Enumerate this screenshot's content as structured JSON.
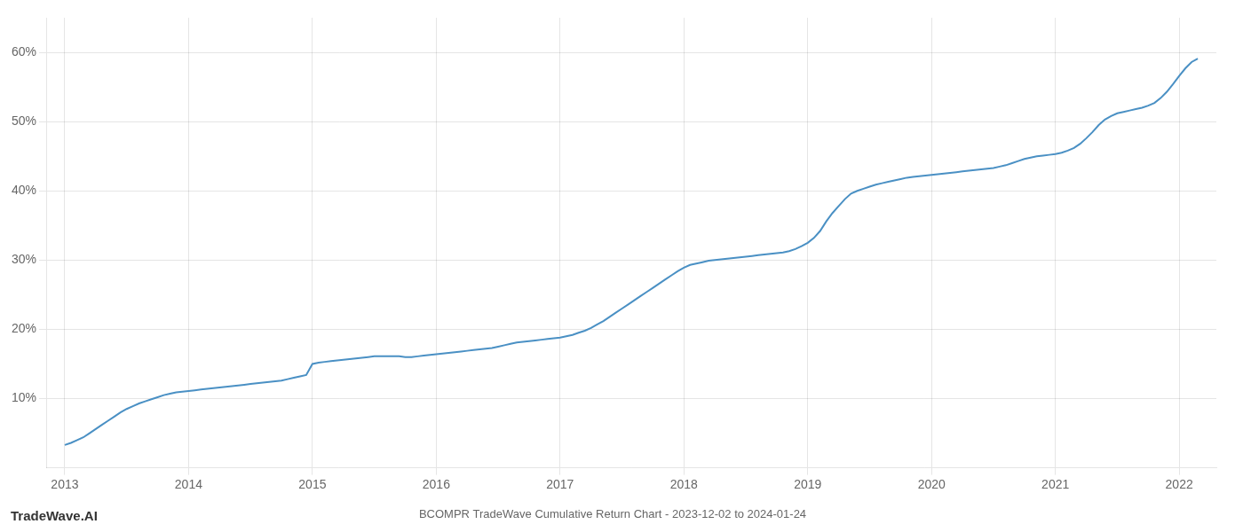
{
  "chart_data": {
    "type": "line",
    "title": "BCOMPR TradeWave Cumulative Return Chart - 2023-12-02 to 2024-01-24",
    "annotations": [
      "TradeWave.AI"
    ],
    "color": "#4a90c4",
    "grid": true,
    "xlim": [
      2012.85,
      2022.3
    ],
    "xticks": [
      2013,
      2014,
      2015,
      2016,
      2017,
      2018,
      2019,
      2020,
      2021,
      2022
    ],
    "ylim": [
      0.0,
      0.65
    ],
    "yticks": [
      {
        "value": 0.1,
        "label": "10%"
      },
      {
        "value": 0.2,
        "label": "20%"
      },
      {
        "value": 0.3,
        "label": "30%"
      },
      {
        "value": 0.4,
        "label": "40%"
      },
      {
        "value": 0.5,
        "label": "50%"
      },
      {
        "value": 0.6,
        "label": "60%"
      }
    ],
    "x": [
      2013.0,
      2013.05,
      2013.1,
      2013.15,
      2013.2,
      2013.25,
      2013.3,
      2013.35,
      2013.4,
      2013.45,
      2013.5,
      2013.55,
      2013.6,
      2013.65,
      2013.7,
      2013.75,
      2013.8,
      2013.85,
      2013.9,
      2013.95,
      2014.0,
      2014.05,
      2014.1,
      2014.15,
      2014.2,
      2014.25,
      2014.3,
      2014.35,
      2014.4,
      2014.45,
      2014.5,
      2014.55,
      2014.6,
      2014.65,
      2014.7,
      2014.75,
      2014.8,
      2014.85,
      2014.9,
      2014.95,
      2015.0,
      2015.05,
      2015.1,
      2015.15,
      2015.2,
      2015.25,
      2015.3,
      2015.35,
      2015.4,
      2015.45,
      2015.5,
      2015.55,
      2015.6,
      2015.65,
      2015.7,
      2015.75,
      2015.8,
      2015.85,
      2015.9,
      2015.95,
      2016.0,
      2016.05,
      2016.1,
      2016.15,
      2016.2,
      2016.25,
      2016.3,
      2016.35,
      2016.4,
      2016.45,
      2016.5,
      2016.55,
      2016.6,
      2016.65,
      2016.7,
      2016.75,
      2016.8,
      2016.85,
      2016.9,
      2016.95,
      2017.0,
      2017.05,
      2017.1,
      2017.15,
      2017.2,
      2017.25,
      2017.3,
      2017.35,
      2017.4,
      2017.45,
      2017.5,
      2017.55,
      2017.6,
      2017.65,
      2017.7,
      2017.75,
      2017.8,
      2017.85,
      2017.9,
      2017.95,
      2018.0,
      2018.05,
      2018.1,
      2018.15,
      2018.2,
      2018.25,
      2018.3,
      2018.35,
      2018.4,
      2018.45,
      2018.5,
      2018.55,
      2018.6,
      2018.65,
      2018.7,
      2018.75,
      2018.8,
      2018.85,
      2018.9,
      2018.95,
      2019.0,
      2019.05,
      2019.1,
      2019.15,
      2019.2,
      2019.25,
      2019.3,
      2019.35,
      2019.4,
      2019.45,
      2019.5,
      2019.55,
      2019.6,
      2019.65,
      2019.7,
      2019.75,
      2019.8,
      2019.85,
      2019.9,
      2019.95,
      2020.0,
      2020.05,
      2020.1,
      2020.15,
      2020.2,
      2020.25,
      2020.3,
      2020.35,
      2020.4,
      2020.45,
      2020.5,
      2020.55,
      2020.6,
      2020.65,
      2020.7,
      2020.75,
      2020.8,
      2020.85,
      2020.9,
      2020.95,
      2021.0,
      2021.05,
      2021.1,
      2021.15,
      2021.2,
      2021.25,
      2021.3,
      2021.35,
      2021.4,
      2021.45,
      2021.5,
      2021.55,
      2021.6,
      2021.65,
      2021.7,
      2021.75,
      2021.8,
      2021.85,
      2021.9,
      2021.95,
      2022.0,
      2022.05,
      2022.1,
      2022.15
    ],
    "values": [
      0.033,
      0.036,
      0.04,
      0.044,
      0.05,
      0.056,
      0.062,
      0.068,
      0.074,
      0.08,
      0.085,
      0.089,
      0.093,
      0.096,
      0.099,
      0.102,
      0.105,
      0.107,
      0.109,
      0.11,
      0.111,
      0.112,
      0.113,
      0.114,
      0.115,
      0.116,
      0.117,
      0.118,
      0.119,
      0.12,
      0.121,
      0.122,
      0.123,
      0.124,
      0.125,
      0.126,
      0.128,
      0.13,
      0.132,
      0.134,
      0.15,
      0.152,
      0.153,
      0.154,
      0.155,
      0.156,
      0.157,
      0.158,
      0.159,
      0.16,
      0.161,
      0.161,
      0.161,
      0.161,
      0.161,
      0.16,
      0.16,
      0.161,
      0.162,
      0.163,
      0.164,
      0.165,
      0.166,
      0.167,
      0.168,
      0.169,
      0.17,
      0.171,
      0.172,
      0.173,
      0.175,
      0.177,
      0.179,
      0.181,
      0.182,
      0.183,
      0.184,
      0.185,
      0.186,
      0.187,
      0.188,
      0.19,
      0.192,
      0.195,
      0.198,
      0.202,
      0.207,
      0.212,
      0.218,
      0.224,
      0.23,
      0.236,
      0.242,
      0.248,
      0.254,
      0.26,
      0.266,
      0.272,
      0.278,
      0.284,
      0.289,
      0.293,
      0.295,
      0.297,
      0.299,
      0.3,
      0.301,
      0.302,
      0.303,
      0.304,
      0.305,
      0.306,
      0.307,
      0.308,
      0.309,
      0.31,
      0.311,
      0.313,
      0.316,
      0.32,
      0.325,
      0.332,
      0.342,
      0.356,
      0.368,
      0.378,
      0.388,
      0.396,
      0.4,
      0.403,
      0.406,
      0.409,
      0.411,
      0.413,
      0.415,
      0.417,
      0.419,
      0.42,
      0.421,
      0.422,
      0.423,
      0.424,
      0.425,
      0.426,
      0.427,
      0.428,
      0.429,
      0.43,
      0.431,
      0.432,
      0.433,
      0.435,
      0.437,
      0.44,
      0.443,
      0.446,
      0.448,
      0.45,
      0.451,
      0.452,
      0.453,
      0.455,
      0.458,
      0.462,
      0.468,
      0.476,
      0.485,
      0.495,
      0.503,
      0.508,
      0.512,
      0.514,
      0.516,
      0.518,
      0.52,
      0.523,
      0.527,
      0.534,
      0.543,
      0.554,
      0.566,
      0.577,
      0.586,
      0.591
    ]
  }
}
